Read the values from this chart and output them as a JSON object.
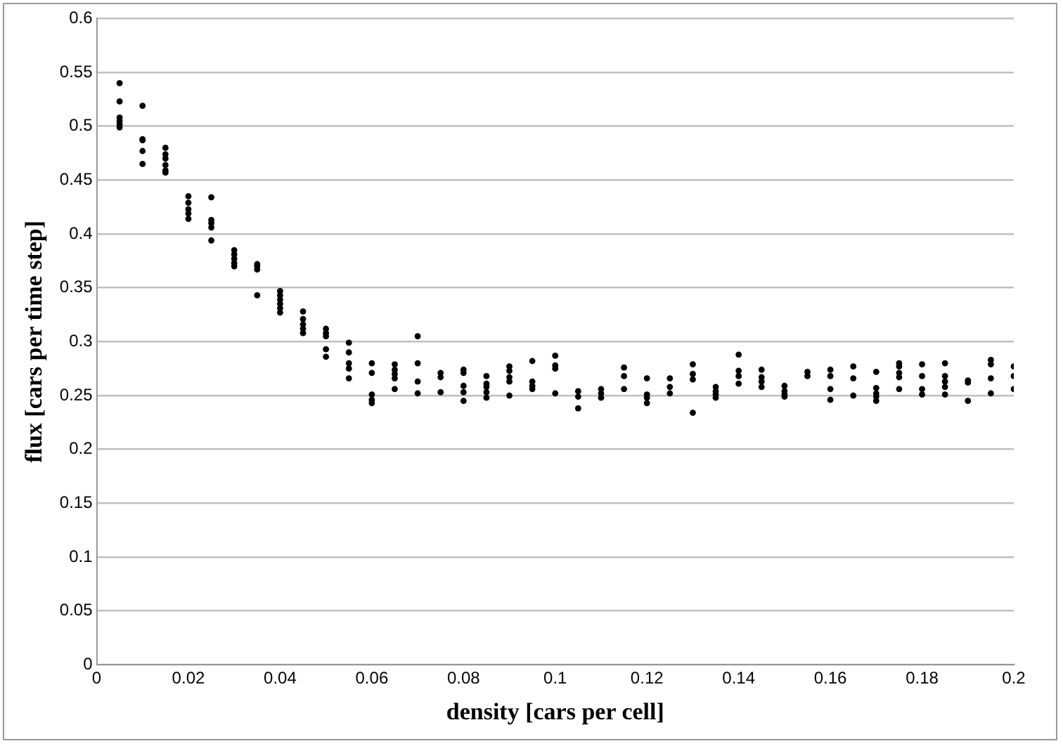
{
  "chart_data": {
    "type": "scatter",
    "xlabel": "density [cars per cell]",
    "ylabel": "flux [cars per time step]",
    "x": [
      0.005,
      0.005,
      0.005,
      0.005,
      0.005,
      0.005,
      0.01,
      0.01,
      0.01,
      0.01,
      0.01,
      0.015,
      0.015,
      0.015,
      0.015,
      0.015,
      0.015,
      0.02,
      0.02,
      0.02,
      0.02,
      0.02,
      0.025,
      0.025,
      0.025,
      0.025,
      0.025,
      0.03,
      0.03,
      0.03,
      0.03,
      0.03,
      0.035,
      0.035,
      0.035,
      0.035,
      0.04,
      0.04,
      0.04,
      0.04,
      0.04,
      0.04,
      0.045,
      0.045,
      0.045,
      0.045,
      0.045,
      0.05,
      0.05,
      0.05,
      0.05,
      0.05,
      0.055,
      0.055,
      0.055,
      0.055,
      0.055,
      0.06,
      0.06,
      0.06,
      0.06,
      0.06,
      0.065,
      0.065,
      0.065,
      0.065,
      0.065,
      0.07,
      0.07,
      0.07,
      0.07,
      0.075,
      0.075,
      0.075,
      0.08,
      0.08,
      0.08,
      0.08,
      0.08,
      0.085,
      0.085,
      0.085,
      0.085,
      0.085,
      0.09,
      0.09,
      0.09,
      0.09,
      0.09,
      0.095,
      0.095,
      0.095,
      0.095,
      0.1,
      0.1,
      0.1,
      0.1,
      0.105,
      0.105,
      0.105,
      0.11,
      0.11,
      0.11,
      0.115,
      0.115,
      0.115,
      0.12,
      0.12,
      0.12,
      0.12,
      0.125,
      0.125,
      0.125,
      0.13,
      0.13,
      0.13,
      0.13,
      0.135,
      0.135,
      0.135,
      0.135,
      0.14,
      0.14,
      0.14,
      0.14,
      0.145,
      0.145,
      0.145,
      0.145,
      0.15,
      0.15,
      0.15,
      0.15,
      0.155,
      0.155,
      0.16,
      0.16,
      0.16,
      0.16,
      0.165,
      0.165,
      0.165,
      0.17,
      0.17,
      0.17,
      0.17,
      0.17,
      0.175,
      0.175,
      0.175,
      0.175,
      0.175,
      0.18,
      0.18,
      0.18,
      0.18,
      0.185,
      0.185,
      0.185,
      0.185,
      0.185,
      0.19,
      0.19,
      0.19,
      0.195,
      0.195,
      0.195,
      0.195,
      0.2,
      0.2,
      0.2
    ],
    "series": [
      {
        "color": "#000000",
        "values": [
          0.54,
          0.523,
          0.508,
          0.505,
          0.502,
          0.499,
          0.519,
          0.488,
          0.487,
          0.477,
          0.465,
          0.48,
          0.474,
          0.47,
          0.464,
          0.459,
          0.457,
          0.435,
          0.429,
          0.423,
          0.419,
          0.414,
          0.434,
          0.413,
          0.41,
          0.406,
          0.394,
          0.385,
          0.381,
          0.377,
          0.373,
          0.37,
          0.372,
          0.37,
          0.367,
          0.343,
          0.347,
          0.343,
          0.339,
          0.335,
          0.331,
          0.327,
          0.328,
          0.321,
          0.316,
          0.312,
          0.308,
          0.312,
          0.308,
          0.305,
          0.293,
          0.286,
          0.299,
          0.29,
          0.28,
          0.275,
          0.266,
          0.28,
          0.271,
          0.251,
          0.246,
          0.243,
          0.279,
          0.274,
          0.27,
          0.266,
          0.256,
          0.305,
          0.28,
          0.263,
          0.252,
          0.271,
          0.267,
          0.253,
          0.274,
          0.271,
          0.259,
          0.253,
          0.245,
          0.268,
          0.261,
          0.258,
          0.253,
          0.248,
          0.277,
          0.273,
          0.267,
          0.263,
          0.25,
          0.282,
          0.263,
          0.259,
          0.256,
          0.287,
          0.278,
          0.275,
          0.252,
          0.254,
          0.249,
          0.238,
          0.256,
          0.252,
          0.248,
          0.276,
          0.268,
          0.256,
          0.266,
          0.251,
          0.248,
          0.243,
          0.266,
          0.258,
          0.252,
          0.279,
          0.27,
          0.265,
          0.234,
          0.258,
          0.254,
          0.251,
          0.248,
          0.288,
          0.273,
          0.268,
          0.261,
          0.274,
          0.267,
          0.263,
          0.258,
          0.259,
          0.254,
          0.251,
          0.249,
          0.272,
          0.268,
          0.274,
          0.268,
          0.256,
          0.246,
          0.277,
          0.266,
          0.25,
          0.272,
          0.257,
          0.252,
          0.249,
          0.245,
          0.28,
          0.277,
          0.271,
          0.267,
          0.256,
          0.279,
          0.268,
          0.256,
          0.251,
          0.28,
          0.268,
          0.263,
          0.258,
          0.251,
          0.264,
          0.262,
          0.245,
          0.283,
          0.279,
          0.266,
          0.252,
          0.277,
          0.268,
          0.256
        ]
      }
    ],
    "xlim": [
      0,
      0.2
    ],
    "xticks": [
      0,
      0.02,
      0.04,
      0.06,
      0.08,
      0.1,
      0.12,
      0.14,
      0.16,
      0.18,
      0.2
    ],
    "ylim": [
      0,
      0.6
    ],
    "yticks": [
      0,
      0.05,
      0.1,
      0.15,
      0.2,
      0.25,
      0.3,
      0.35,
      0.4,
      0.45,
      0.5,
      0.55,
      0.6
    ],
    "grid": "y",
    "marker": "circle"
  }
}
